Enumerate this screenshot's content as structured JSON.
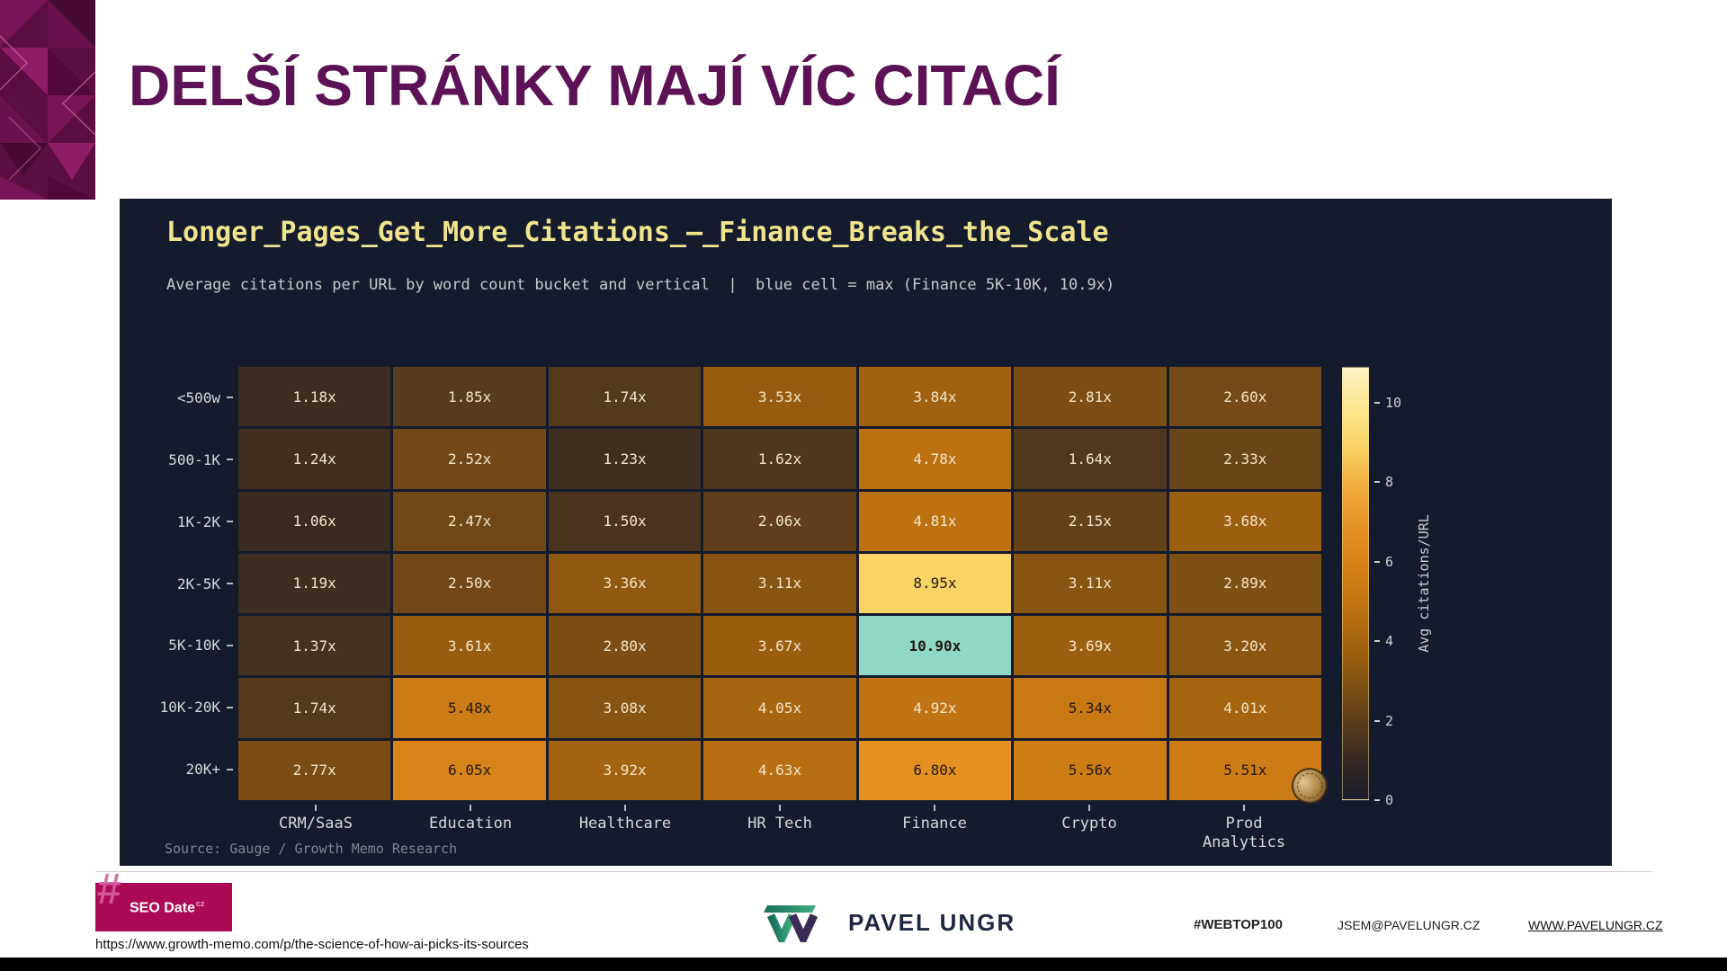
{
  "slide": {
    "title": "DELŠÍ STRÁNKY MAJÍ VÍC CITACÍ",
    "source_url": "https://www.growth-memo.com/p/the-science-of-how-ai-picks-its-sources"
  },
  "chart_data": {
    "type": "heatmap",
    "title": "Longer_Pages_Get_More_Citations_–_Finance_Breaks_the_Scale",
    "subtitle": "Average citations per URL by word count bucket and vertical  |  blue cell = max (Finance 5K-10K, 10.9x)",
    "source": "Source: Gauge / Growth Memo Research",
    "rows": [
      "<500w",
      "500-1K",
      "1K-2K",
      "2K-5K",
      "5K-10K",
      "10K-20K",
      "20K+"
    ],
    "columns": [
      "CRM/SaaS",
      "Education",
      "Healthcare",
      "HR Tech",
      "Finance",
      "Crypto",
      "Prod\nAnalytics"
    ],
    "values": [
      [
        1.18,
        1.85,
        1.74,
        3.53,
        3.84,
        2.81,
        2.6
      ],
      [
        1.24,
        2.52,
        1.23,
        1.62,
        4.78,
        1.64,
        2.33
      ],
      [
        1.06,
        2.47,
        1.5,
        2.06,
        4.81,
        2.15,
        3.68
      ],
      [
        1.19,
        2.5,
        3.36,
        3.11,
        8.95,
        3.11,
        2.89
      ],
      [
        1.37,
        3.61,
        2.8,
        3.67,
        10.9,
        3.69,
        3.2
      ],
      [
        1.74,
        5.48,
        3.08,
        4.05,
        4.92,
        5.34,
        4.01
      ],
      [
        2.77,
        6.05,
        3.92,
        4.63,
        6.8,
        5.56,
        5.51
      ]
    ],
    "value_suffix": "x",
    "colorbar": {
      "label": "Avg citations/URL",
      "ticks": [
        0,
        2,
        4,
        6,
        8,
        10
      ],
      "vmin": 0,
      "vmax": 10.9,
      "position": "right"
    },
    "highlight_max": {
      "row_index": 4,
      "col_index": 4,
      "row": "5K-10K",
      "column": "Finance",
      "value_text": "10.90x",
      "color": "#8fd8c6"
    },
    "grid": false
  },
  "footer": {
    "badge": {
      "hash": "#",
      "label": "SEO Date",
      "suffix": "cz",
      "bg": "#ad0a55"
    },
    "brand_name": "PAVEL UNGR",
    "hashtag": "#WEBTOP100",
    "email": "JSEM@PAVELUNGR.CZ",
    "website": "WWW.PAVELUNGR.CZ"
  },
  "colors": {
    "slide_title": "#5c1255",
    "panel_bg": "#131b2d",
    "chart_title": "#f1e48e",
    "max_cell": "#8fd8c6",
    "badge_bg": "#ad0a55"
  }
}
